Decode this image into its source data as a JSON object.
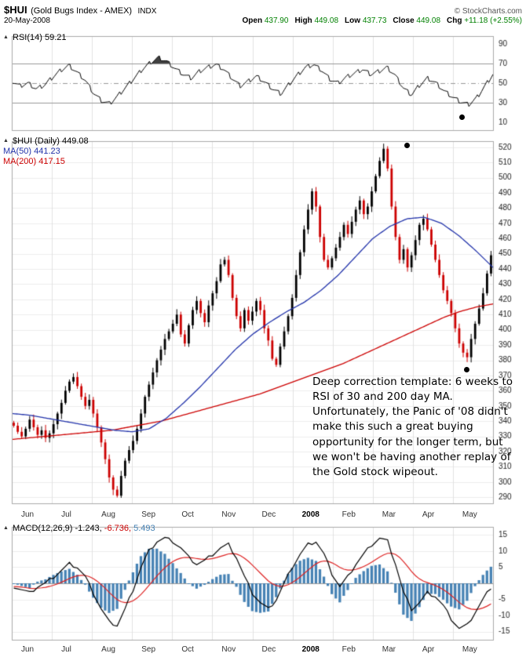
{
  "header": {
    "symbol": "$HUI",
    "name": "(Gold Bugs Index - AMEX)",
    "type": "INDX",
    "date": "20-May-2008",
    "copyright": "© StockCharts.com",
    "quote": [
      {
        "label": "Open",
        "value": "437.90"
      },
      {
        "label": "High",
        "value": "449.08"
      },
      {
        "label": "Low",
        "value": "437.73"
      },
      {
        "label": "Close",
        "value": "449.08"
      },
      {
        "label": "Chg",
        "value": "+11.18 (+2.55%)"
      }
    ]
  },
  "icons": {
    "panel_marker": "▲"
  },
  "panels": {
    "rsi": {
      "label": "RSI(14)",
      "value": "59.21",
      "axis_labels": [
        90,
        70,
        50,
        30,
        10
      ]
    },
    "main": {
      "label": "$HUI (Daily)",
      "value": "449.08",
      "ma50": "MA(50) 441.23",
      "ma200": "MA(200) 417.15",
      "axis_min": 290,
      "axis_max": 520,
      "axis_step": 10
    },
    "macd": {
      "label": "MACD(12,26,9)",
      "v1": "-1.243,",
      "v2": "-6.736,",
      "v3": "5.493",
      "axis_labels": [
        15,
        10,
        5,
        -5,
        -10,
        -15
      ]
    }
  },
  "months": [
    "Jun",
    "Jul",
    "Aug",
    "Sep",
    "Oct",
    "Nov",
    "Dec",
    "2008",
    "Feb",
    "Mar",
    "Apr",
    "May"
  ],
  "annotation": {
    "text": "Deep correction template: 6 weeks to RSI of 30 and 200 day MA. Unfortunately, the Panic of '08 didn't make this such a great buying opportunity for the longer term, but we won't be having another replay of the Gold stock wipeout."
  },
  "annotation_dots": [
    {
      "panel": "rsi",
      "x": 0.935,
      "value": 15
    },
    {
      "panel": "main",
      "x": 0.822,
      "value": 521
    },
    {
      "panel": "main",
      "x": 0.946,
      "value": 374
    }
  ],
  "colors": {
    "up": "#000000",
    "down": "#cc0000",
    "ma50": "#2233aa",
    "ma200": "#cc0000",
    "macd_line": "#000000",
    "signal": "#dd2222",
    "histogram": "#4682B4",
    "rsi_line": "#000000",
    "rsi_fill": "#404040",
    "quote_value": "#008000"
  },
  "chart_data": [
    {
      "id": "rsi",
      "type": "line",
      "name": "RSI(14)",
      "last": 59.21,
      "ylim": [
        0,
        100
      ],
      "reference_lines": [
        30,
        50,
        70
      ],
      "x_months": [
        "Jun",
        "Jul",
        "Aug",
        "Sep",
        "Oct",
        "Nov",
        "Dec",
        "2008",
        "Feb",
        "Mar",
        "Apr",
        "May"
      ],
      "values": [
        52,
        47,
        50,
        44,
        48,
        56,
        63,
        68,
        61,
        53,
        40,
        32,
        29,
        37,
        46,
        55,
        64,
        71,
        76,
        72,
        65,
        59,
        55,
        62,
        66,
        69,
        64,
        55,
        47,
        52,
        57,
        51,
        44,
        39,
        49,
        58,
        66,
        69,
        63,
        54,
        50,
        56,
        60,
        64,
        59,
        62,
        66,
        58,
        45,
        38,
        48,
        55,
        50,
        42,
        36,
        31,
        28,
        35,
        47,
        59
      ]
    },
    {
      "id": "price",
      "type": "candlestick",
      "name": "$HUI Daily",
      "last": 449.08,
      "ylim": [
        290,
        520
      ],
      "x_months": [
        "Jun",
        "Jul",
        "Aug",
        "Sep",
        "Oct",
        "Nov",
        "Dec",
        "2008",
        "Feb",
        "Mar",
        "Apr",
        "May"
      ],
      "close": [
        337,
        333,
        330,
        335,
        341,
        336,
        331,
        334,
        329,
        332,
        338,
        345,
        352,
        360,
        366,
        369,
        363,
        356,
        350,
        354,
        345,
        336,
        326,
        315,
        303,
        295,
        291,
        304,
        314,
        321,
        327,
        335,
        345,
        356,
        364,
        372,
        380,
        387,
        394,
        399,
        404,
        410,
        397,
        391,
        403,
        413,
        419,
        411,
        405,
        416,
        424,
        432,
        443,
        446,
        436,
        421,
        409,
        401,
        413,
        406,
        412,
        419,
        413,
        401,
        393,
        381,
        377,
        389,
        399,
        409,
        421,
        436,
        451,
        466,
        479,
        491,
        481,
        461,
        446,
        441,
        447,
        454,
        461,
        469,
        463,
        471,
        479,
        485,
        476,
        481,
        491,
        501,
        511,
        519,
        506,
        481,
        461,
        446,
        453,
        441,
        449,
        459,
        469,
        473,
        466,
        456,
        446,
        436,
        426,
        419,
        411,
        401,
        391,
        385,
        382,
        394,
        404,
        414,
        424,
        437,
        449
      ],
      "ma50": {
        "name": "MA(50)",
        "last": 441.23,
        "values": [
          345,
          344,
          342,
          340,
          338,
          336,
          334,
          333,
          335,
          342,
          352,
          363,
          375,
          387,
          397,
          405,
          412,
          418,
          426,
          436,
          448,
          460,
          468,
          473,
          474,
          470,
          462,
          452,
          441
        ]
      },
      "ma200": {
        "name": "MA(200)",
        "last": 417.15,
        "values": [
          328,
          329,
          330,
          331,
          332,
          333,
          334,
          336,
          338,
          340,
          343,
          346,
          349,
          352,
          355,
          358,
          362,
          366,
          370,
          374,
          378,
          383,
          388,
          393,
          398,
          403,
          408,
          412,
          415,
          417
        ]
      }
    },
    {
      "id": "macd",
      "type": "histogram+lines",
      "name": "MACD(12,26,9)",
      "macd_last": -1.243,
      "signal_last": -6.736,
      "hist_last": 5.493,
      "ylim": [
        -15,
        15
      ],
      "x_months": [
        "Jun",
        "Jul",
        "Aug",
        "Sep",
        "Oct",
        "Nov",
        "Dec",
        "2008",
        "Feb",
        "Mar",
        "Apr",
        "May"
      ],
      "macd": [
        -1,
        -2,
        -3,
        -1,
        0,
        2,
        4,
        6,
        5,
        2,
        -3,
        -8,
        -12,
        -13,
        -8,
        -2,
        5,
        10,
        13,
        14,
        13,
        11,
        8,
        6,
        7,
        9,
        11,
        12,
        8,
        2,
        -3,
        -6,
        -8,
        -5,
        0,
        5,
        9,
        12,
        13,
        9,
        3,
        -1,
        2,
        6,
        9,
        12,
        14,
        13,
        6,
        -3,
        -8,
        -6,
        -3,
        -4,
        -7,
        -11,
        -14,
        -13,
        -9,
        -5,
        -1.243
      ]
    }
  ]
}
